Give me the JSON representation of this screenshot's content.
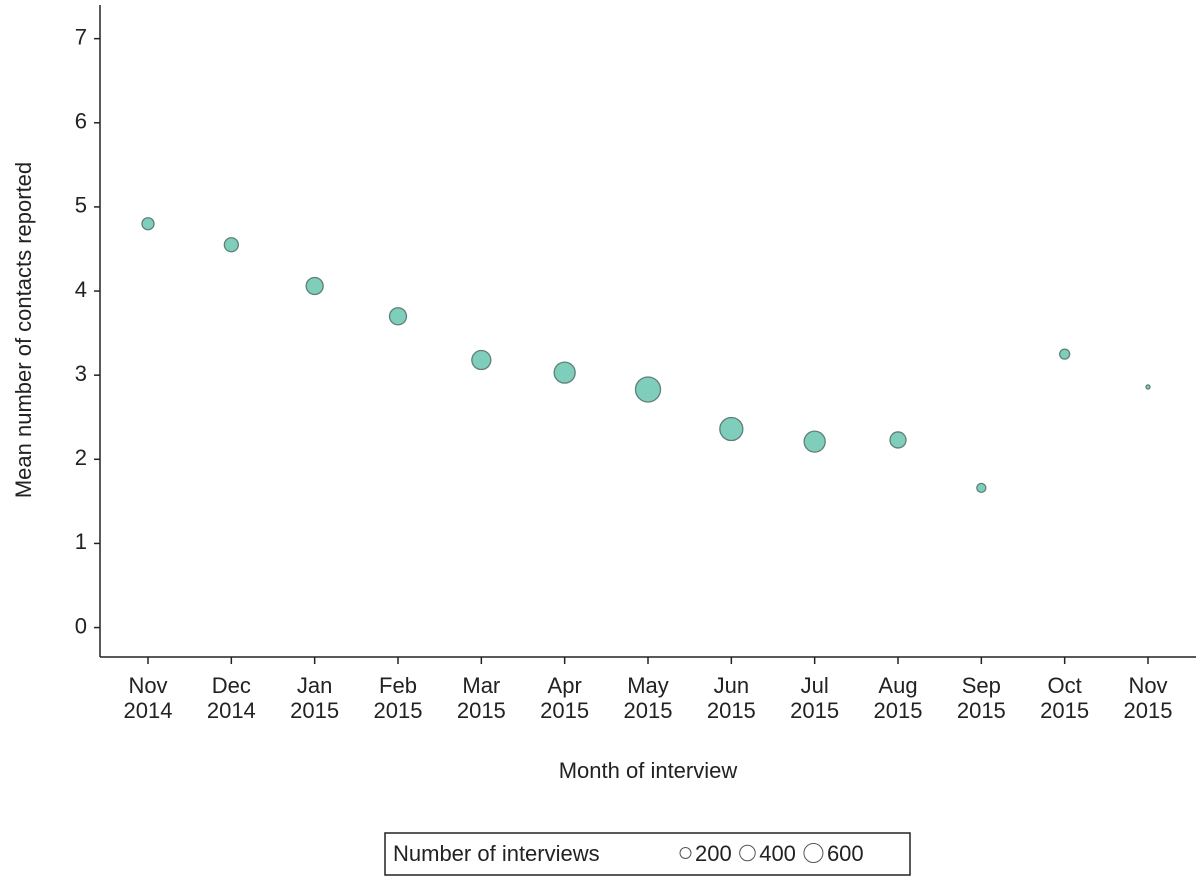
{
  "chart_data": {
    "type": "bubble",
    "x_label": "Month of interview",
    "y_label": "Mean number of contacts reported",
    "categories": [
      "Nov 2014",
      "Dec 2014",
      "Jan 2015",
      "Feb 2015",
      "Mar 2015",
      "Apr 2015",
      "May 2015",
      "Jun 2015",
      "Jul 2015",
      "Aug 2015",
      "Sep 2015",
      "Oct 2015",
      "Nov 2015"
    ],
    "values": [
      4.8,
      4.55,
      4.06,
      3.7,
      3.18,
      3.03,
      2.83,
      2.36,
      2.21,
      2.23,
      1.66,
      3.25,
      2.86
    ],
    "sizes": [
      239,
      325,
      480,
      480,
      600,
      732,
      1038,
      878,
      732,
      425,
      135,
      166,
      27
    ],
    "color": "#7fcdbb",
    "ylim": [
      -0.35,
      7.4
    ],
    "yticks": [
      0,
      1,
      2,
      3,
      4,
      5,
      6,
      7
    ],
    "size_legend": {
      "title": "Number of interviews",
      "values": [
        200,
        400,
        600
      ]
    }
  }
}
